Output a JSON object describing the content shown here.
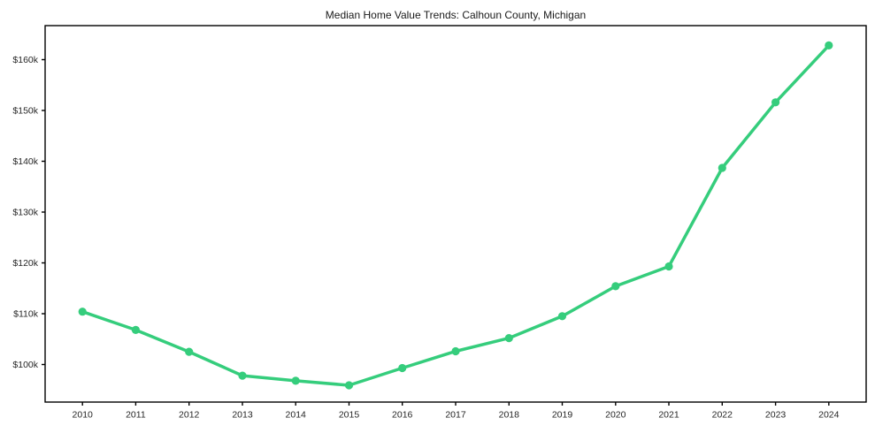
{
  "chart_data": {
    "type": "line",
    "title": "Median Home Value Trends: Calhoun County, Michigan",
    "series_name": "Median Home Value",
    "x": [
      2010,
      2011,
      2012,
      2013,
      2014,
      2015,
      2016,
      2017,
      2018,
      2019,
      2020,
      2021,
      2022,
      2023,
      2024
    ],
    "values": [
      110400,
      106800,
      102500,
      97800,
      96800,
      95900,
      99300,
      102600,
      105200,
      109500,
      115400,
      119300,
      138700,
      151600,
      162800
    ],
    "xtick_labels": [
      "2010",
      "2011",
      "2012",
      "2013",
      "2014",
      "2015",
      "2016",
      "2017",
      "2018",
      "2019",
      "2020",
      "2021",
      "2022",
      "2023",
      "2024"
    ],
    "yticks": [
      {
        "value": 100000,
        "label": "$100k"
      },
      {
        "value": 110000,
        "label": "$110k"
      },
      {
        "value": 120000,
        "label": "$120k"
      },
      {
        "value": 130000,
        "label": "$130k"
      },
      {
        "value": 140000,
        "label": "$140k"
      },
      {
        "value": 150000,
        "label": "$150k"
      },
      {
        "value": 160000,
        "label": "$160k"
      }
    ],
    "xlabel": "",
    "ylabel": "",
    "xlim": [
      2009.3,
      2024.7
    ],
    "ylim": [
      92600,
      166700
    ],
    "grid": false,
    "legend": false,
    "marker": "circle",
    "line_color": "#35cd7c",
    "axis_color": "#000000",
    "text_color": "#262626",
    "background": "#ffffff"
  }
}
